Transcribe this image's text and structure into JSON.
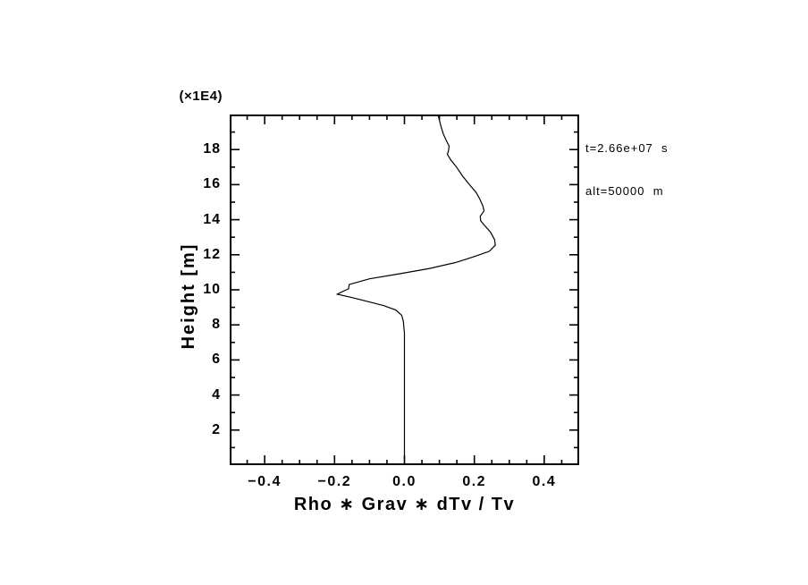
{
  "figure": {
    "background": "#ffffff",
    "foreground": "#000000"
  },
  "chart_data": {
    "type": "line",
    "title": "",
    "xlabel": "Rho ∗ Grav ∗ dTv / Tv",
    "ylabel": "Height [m]",
    "y_scale_label": "(×1E4)",
    "xlim": [
      -0.5,
      0.5
    ],
    "ylim": [
      0,
      20
    ],
    "grid": false,
    "legend": "none",
    "x_major_ticks": [
      -0.4,
      -0.2,
      0.0,
      0.2,
      0.4
    ],
    "x_tick_labels": [
      "−0.4",
      "−0.2",
      "0.0",
      "0.2",
      "0.4"
    ],
    "x_minor_tick_step": 0.05,
    "y_major_ticks": [
      2,
      4,
      6,
      8,
      10,
      12,
      14,
      16,
      18
    ],
    "y_tick_labels": [
      "2",
      "4",
      "6",
      "8",
      "10",
      "12",
      "14",
      "16",
      "18"
    ],
    "y_minor_tick_step": 1,
    "annotations": [
      "t=2.66e+07  s",
      "alt=50000  m"
    ],
    "series": [
      {
        "color": "#000000",
        "points": [
          [
            0.0,
            0.0
          ],
          [
            0.0,
            7.5
          ],
          [
            -0.003,
            8.2
          ],
          [
            -0.008,
            8.55
          ],
          [
            -0.025,
            8.85
          ],
          [
            -0.06,
            9.1
          ],
          [
            -0.105,
            9.33
          ],
          [
            -0.155,
            9.58
          ],
          [
            -0.192,
            9.75
          ],
          [
            -0.172,
            9.95
          ],
          [
            -0.16,
            10.05
          ],
          [
            -0.158,
            10.3
          ],
          [
            -0.1,
            10.63
          ],
          [
            -0.013,
            10.92
          ],
          [
            0.072,
            11.22
          ],
          [
            0.149,
            11.57
          ],
          [
            0.2,
            11.9
          ],
          [
            0.243,
            12.2
          ],
          [
            0.26,
            12.55
          ],
          [
            0.258,
            12.85
          ],
          [
            0.246,
            13.3
          ],
          [
            0.228,
            13.7
          ],
          [
            0.218,
            13.95
          ],
          [
            0.217,
            14.2
          ],
          [
            0.228,
            14.5
          ],
          [
            0.224,
            14.8
          ],
          [
            0.215,
            15.2
          ],
          [
            0.205,
            15.55
          ],
          [
            0.184,
            16.05
          ],
          [
            0.166,
            16.5
          ],
          [
            0.149,
            17.0
          ],
          [
            0.133,
            17.4
          ],
          [
            0.123,
            17.72
          ],
          [
            0.126,
            17.95
          ],
          [
            0.128,
            18.2
          ],
          [
            0.119,
            18.55
          ],
          [
            0.111,
            18.9
          ],
          [
            0.104,
            19.35
          ],
          [
            0.096,
            20.0
          ]
        ]
      }
    ]
  }
}
